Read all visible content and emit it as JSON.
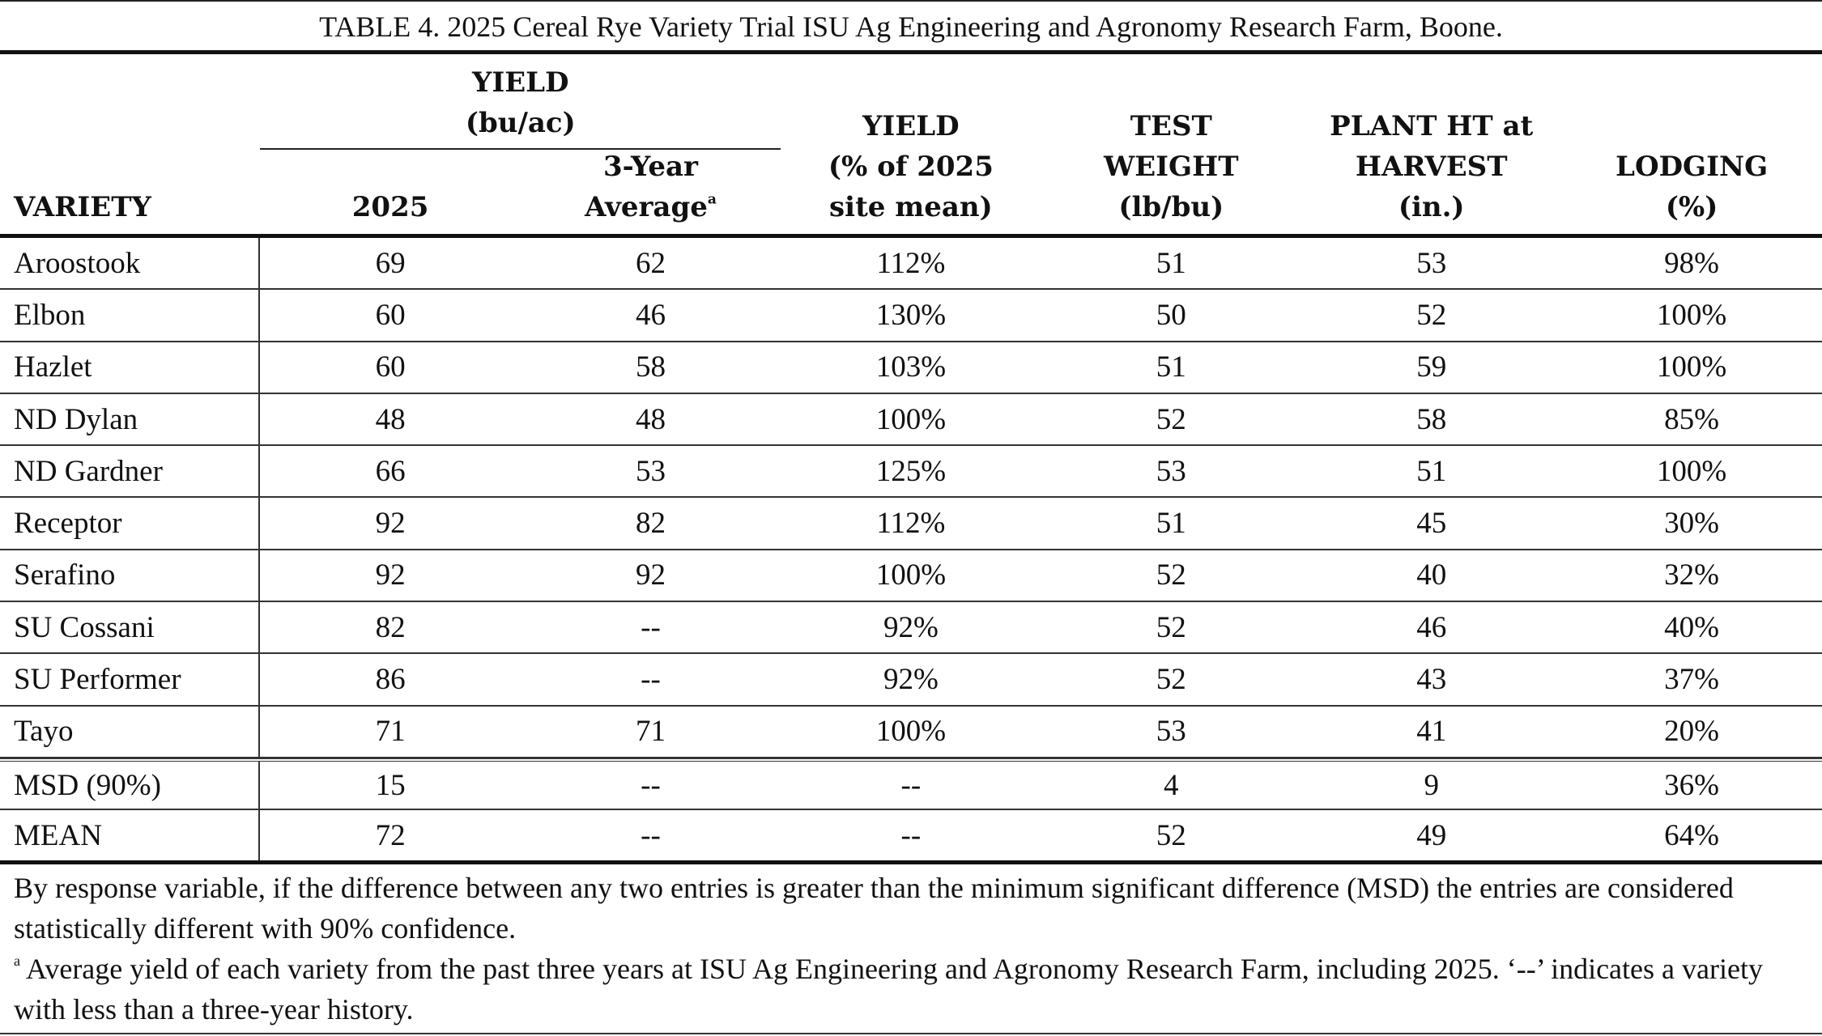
{
  "title": "TABLE 4. 2025 Cereal Rye Variety Trial ISU Ag Engineering and Agronomy Research Farm, Boone.",
  "header": {
    "variety": "VARIETY",
    "yield_group": [
      "YIELD",
      "(bu/ac)"
    ],
    "yield_2025": "2025",
    "three_year": [
      "3-Year",
      "Average"
    ],
    "three_year_marker": "a",
    "yield_pct": [
      "YIELD",
      "(% of 2025",
      "site mean)"
    ],
    "test_weight": [
      "TEST",
      "WEIGHT",
      "(lb/bu)"
    ],
    "plant_ht": [
      "PLANT HT at",
      "HARVEST",
      "(in.)"
    ],
    "lodging": [
      "LODGING",
      "(%)"
    ]
  },
  "table": {
    "rows": [
      [
        "Aroostook",
        "69",
        "62",
        "112%",
        "51",
        "53",
        "98%"
      ],
      [
        "Elbon",
        "60",
        "46",
        "130%",
        "50",
        "52",
        "100%"
      ],
      [
        "Hazlet",
        "60",
        "58",
        "103%",
        "51",
        "59",
        "100%"
      ],
      [
        "ND Dylan",
        "48",
        "48",
        "100%",
        "52",
        "58",
        "85%"
      ],
      [
        "ND Gardner",
        "66",
        "53",
        "125%",
        "53",
        "51",
        "100%"
      ],
      [
        "Receptor",
        "92",
        "82",
        "112%",
        "51",
        "45",
        "30%"
      ],
      [
        "Serafino",
        "92",
        "92",
        "100%",
        "52",
        "40",
        "32%"
      ],
      [
        "SU Cossani",
        "82",
        "--",
        "92%",
        "52",
        "46",
        "40%"
      ],
      [
        "SU Performer",
        "86",
        "--",
        "92%",
        "52",
        "43",
        "37%"
      ],
      [
        "Tayo",
        "71",
        "71",
        "100%",
        "53",
        "41",
        "20%"
      ]
    ],
    "summary_rows": [
      [
        "MSD (90%)",
        "15",
        "--",
        "--",
        "4",
        "9",
        "36%"
      ],
      [
        "MEAN",
        "72",
        "--",
        "--",
        "52",
        "49",
        "64%"
      ]
    ]
  },
  "notes": [
    {
      "text": "By response variable, if the difference between any two entries is greater than the minimum significant difference (MSD) the entries are considered statistically different with 90% confidence."
    },
    {
      "marker": "a",
      "text": " Average yield of each variety from the past three years at ISU Ag Engineering and Agronomy Research Farm, including 2025. ‘--’ indicates a variety with less than a three-year history."
    }
  ]
}
